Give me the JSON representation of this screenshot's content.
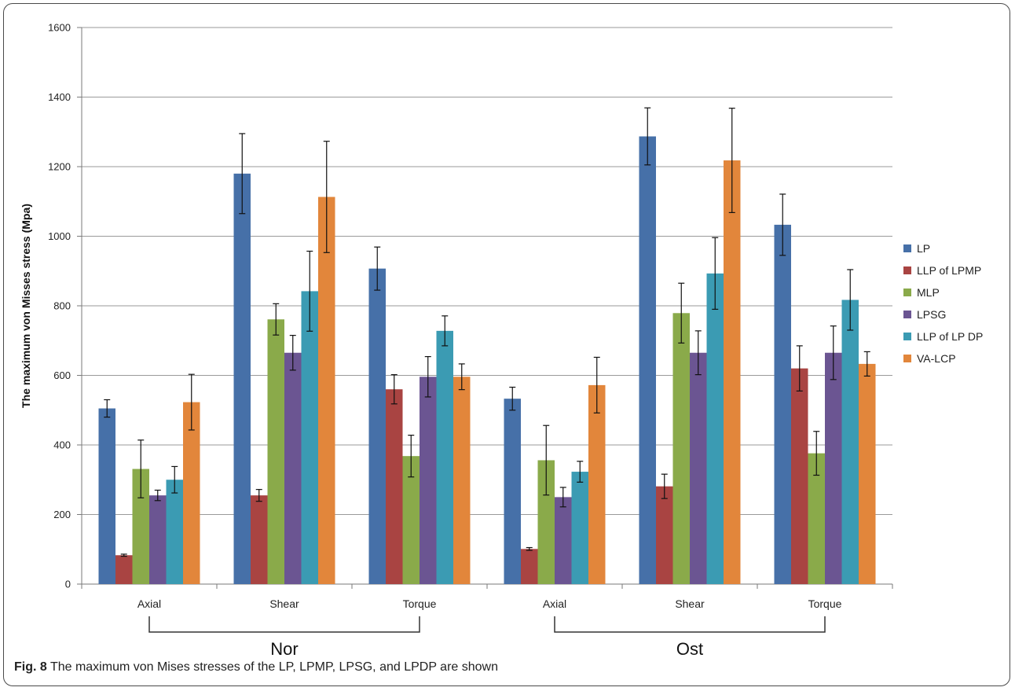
{
  "caption": {
    "label": "Fig. 8",
    "text": " The maximum von Mises stresses of the LP, LPMP, LPSG, and LPDP are shown"
  },
  "chart_data": {
    "type": "bar",
    "ylabel": "The maximum von Misses stress (Mpa)",
    "xlabel": "",
    "ylim": [
      0,
      1600
    ],
    "yticks": [
      0,
      200,
      400,
      600,
      800,
      1000,
      1200,
      1400,
      1600
    ],
    "grid": "horizontal",
    "legend_position": "right",
    "categories": [
      "Axial",
      "Shear",
      "Torque",
      "Axial",
      "Shear",
      "Torque"
    ],
    "groups": [
      {
        "label": "Nor",
        "categories": [
          0,
          1,
          2
        ]
      },
      {
        "label": "Ost",
        "categories": [
          3,
          4,
          5
        ]
      }
    ],
    "series": [
      {
        "name": "LP",
        "color": "#4670a8",
        "values": [
          505,
          1180,
          907,
          533,
          1287,
          1033
        ],
        "errors": [
          25,
          115,
          62,
          33,
          82,
          88
        ]
      },
      {
        "name": "LLP of LPMP",
        "color": "#a94442",
        "values": [
          83,
          255,
          560,
          101,
          281,
          620
        ],
        "errors": [
          3,
          17,
          42,
          4,
          35,
          65
        ]
      },
      {
        "name": "MLP",
        "color": "#8aaa4a",
        "values": [
          331,
          761,
          368,
          356,
          779,
          376
        ],
        "errors": [
          83,
          45,
          60,
          100,
          86,
          63
        ]
      },
      {
        "name": "LPSG",
        "color": "#6b5592",
        "values": [
          255,
          665,
          596,
          250,
          665,
          665
        ],
        "errors": [
          15,
          50,
          58,
          28,
          63,
          77
        ]
      },
      {
        "name": "LLP of LP DP",
        "color": "#3b9bb3",
        "values": [
          300,
          842,
          728,
          323,
          893,
          817
        ],
        "errors": [
          38,
          115,
          43,
          30,
          103,
          87
        ]
      },
      {
        "name": "VA-LCP",
        "color": "#e2863b",
        "values": [
          523,
          1113,
          596,
          572,
          1218,
          633
        ],
        "errors": [
          80,
          160,
          37,
          80,
          150,
          35
        ]
      }
    ]
  }
}
